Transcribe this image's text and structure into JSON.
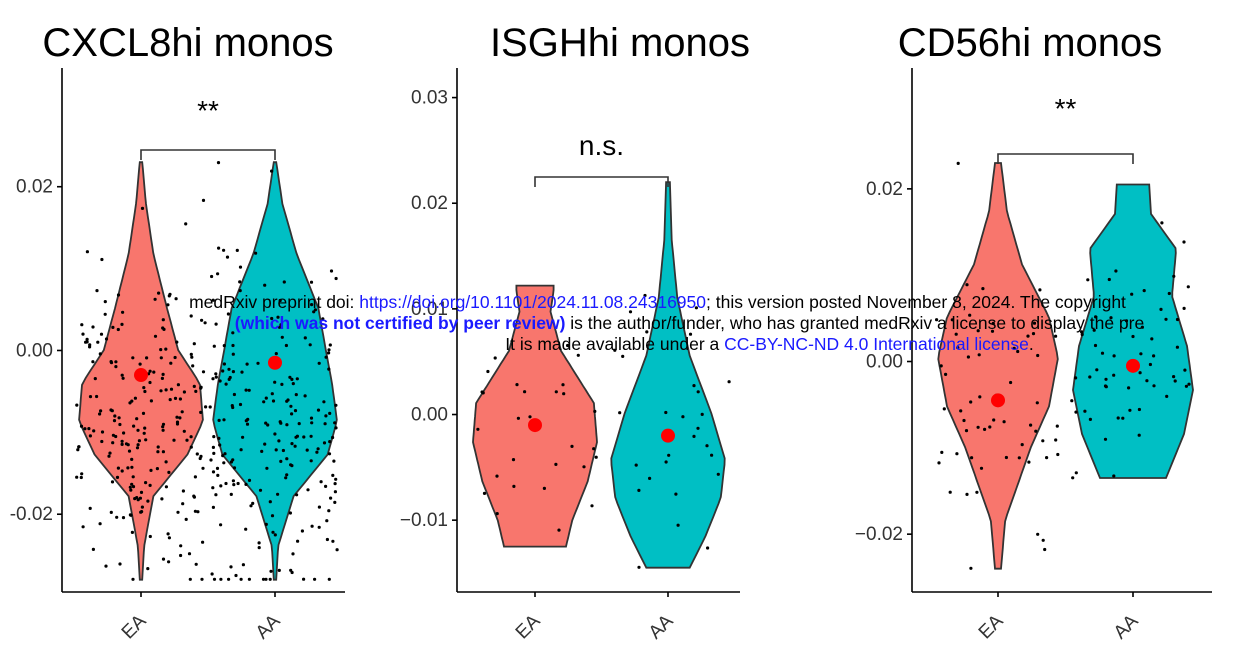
{
  "chart_data": [
    {
      "type": "violin",
      "title": "CXCL8hi monos",
      "categories": [
        "EA",
        "AA"
      ],
      "y_ticks": [
        "-0.02",
        "0.00",
        "0.02"
      ],
      "y_tick_values": [
        -0.02,
        0.0,
        0.02
      ],
      "ylim": [
        -0.0295,
        0.0345
      ],
      "groups": [
        {
          "category": "EA",
          "color": "#F8766D",
          "mean": -0.003,
          "min": -0.028,
          "max": 0.023
        },
        {
          "category": "AA",
          "color": "#00BFC4",
          "mean": -0.0015,
          "min": -0.028,
          "max": 0.023
        }
      ],
      "significance": "**"
    },
    {
      "type": "violin",
      "title": "ISGHhi monos",
      "categories": [
        "EA",
        "AA"
      ],
      "y_ticks": [
        "−0.01",
        "0.00",
        "0.01",
        "0.02",
        "0.03"
      ],
      "y_tick_values": [
        -0.01,
        0.0,
        0.01,
        0.02,
        0.03
      ],
      "ylim": [
        -0.0168,
        0.0328
      ],
      "groups": [
        {
          "category": "EA",
          "color": "#F8766D",
          "mean": -0.001,
          "min": -0.0125,
          "max": 0.0122
        },
        {
          "category": "AA",
          "color": "#00BFC4",
          "mean": -0.002,
          "min": -0.0145,
          "max": 0.022
        }
      ],
      "significance": "n.s."
    },
    {
      "type": "violin",
      "title": "CD56hi monos",
      "categories": [
        "EA",
        "AA"
      ],
      "y_ticks": [
        "−0.02",
        "0.00",
        "0.02"
      ],
      "y_tick_values": [
        -0.02,
        0.0,
        0.02
      ],
      "ylim": [
        -0.0267,
        0.034
      ],
      "groups": [
        {
          "category": "EA",
          "color": "#F8766D",
          "mean": -0.0045,
          "min": -0.024,
          "max": 0.023
        },
        {
          "category": "AA",
          "color": "#00BFC4",
          "mean": -0.0005,
          "min": -0.0135,
          "max": 0.0205
        }
      ],
      "significance": "**"
    }
  ],
  "watermark": {
    "line1_prefix": "medRxiv preprint doi: ",
    "line1_link": "https://doi.org/10.1101/2024.11.08.24316950",
    "line1_suffix": "; this version posted November 8, 2024. The copyright",
    "line2_bold": "(which was not certified by peer review)",
    "line2_suffix": " is the author/funder, who has granted medRxiv a license to display the pre",
    "line3_prefix": "It is made available under a ",
    "line3_link": "CC-BY-NC-ND 4.0 International license",
    "line3_suffix": "."
  }
}
